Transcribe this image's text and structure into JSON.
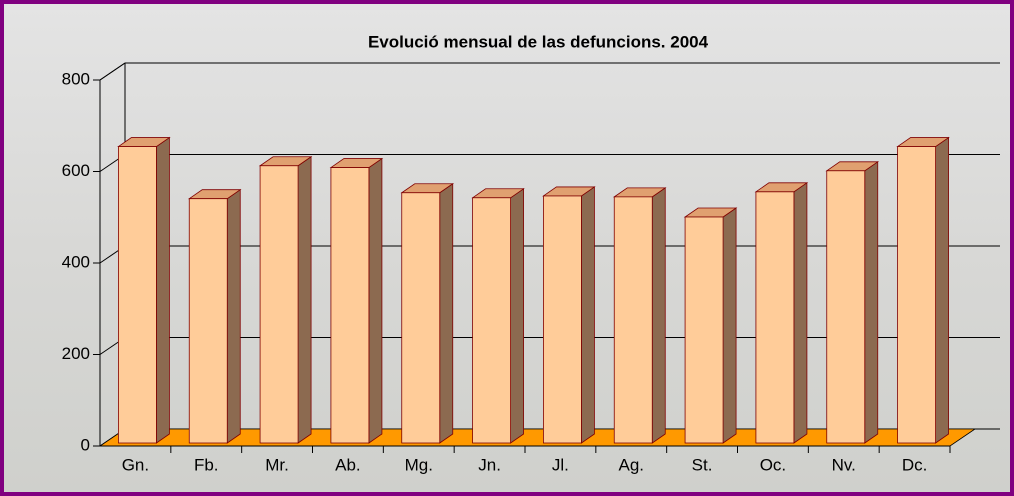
{
  "chart_data": {
    "type": "bar",
    "title": "Evolució mensual de las defuncions. 2004",
    "categories": [
      "Gn.",
      "Fb.",
      "Mr.",
      "Ab.",
      "Mg.",
      "Jn.",
      "Jl.",
      "Ag.",
      "St.",
      "Oc.",
      "Nv.",
      "Dc."
    ],
    "values": [
      648,
      534,
      606,
      602,
      547,
      536,
      540,
      538,
      494,
      549,
      595,
      648
    ],
    "color": "#ffcc99",
    "ylim": [
      0,
      800
    ],
    "yticks": [
      0,
      200,
      400,
      600,
      800
    ],
    "grid": true
  }
}
